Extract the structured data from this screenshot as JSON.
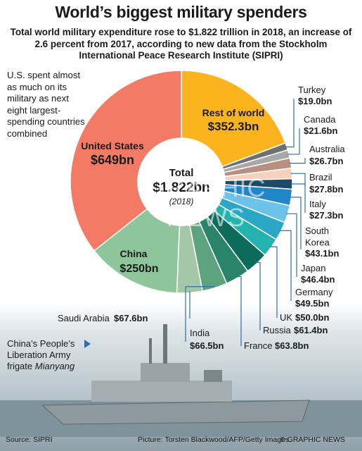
{
  "header": {
    "title": "World’s biggest military spenders",
    "subtitle": "Total world military expenditure rose to $1.822 trillion in 2018, an increase of 2.6 percent from 2017, according to new data from the Stockholm International Peace Research Institute (SIPRI)"
  },
  "note": "U.S. spent almost as much on its military as next eight largest-spending countries combined",
  "center": {
    "label": "Total",
    "value": "$1.822bn",
    "year": "(2018)"
  },
  "chart_data": {
    "type": "pie",
    "title": "World’s biggest military spenders",
    "unit": "$bn",
    "total_label": "$1.822bn",
    "slices": [
      {
        "name": "Rest of world",
        "value": 352.3,
        "label": "$352.3bn",
        "color": "#fbb41d"
      },
      {
        "name": "Turkey",
        "value": 19.0,
        "label": "$19.0bn",
        "color": "#6f6f6f"
      },
      {
        "name": "Canada",
        "value": 21.6,
        "label": "$21.6bn",
        "color": "#a8a8a8"
      },
      {
        "name": "Australia",
        "value": 26.7,
        "label": "$26.7bn",
        "color": "#b98f80"
      },
      {
        "name": "Brazil",
        "value": 27.8,
        "label": "$27.8bn",
        "color": "#f6d2bd"
      },
      {
        "name": "Italy",
        "value": 27.3,
        "label": "$27.3bn",
        "color": "#1b4a69"
      },
      {
        "name": "South Korea",
        "value": 43.1,
        "label": "$43.1bn",
        "color": "#1f86c8"
      },
      {
        "name": "Japan",
        "value": 46.4,
        "label": "$46.4bn",
        "color": "#6dc3e7"
      },
      {
        "name": "Germany",
        "value": 49.5,
        "label": "$49.5bn",
        "color": "#2aa7c4"
      },
      {
        "name": "UK",
        "value": 50.0,
        "label": "$50.0bn",
        "color": "#23b3ae"
      },
      {
        "name": "Russia",
        "value": 61.4,
        "label": "$61.4bn",
        "color": "#0d6b5b"
      },
      {
        "name": "France",
        "value": 63.8,
        "label": "$63.8bn",
        "color": "#2a8467"
      },
      {
        "name": "India",
        "value": 66.5,
        "label": "$66.5bn",
        "color": "#5ea37f"
      },
      {
        "name": "Saudi Arabia",
        "value": 67.6,
        "label": "$67.6bn",
        "color": "#a4c7a8"
      },
      {
        "name": "China",
        "value": 250.0,
        "label": "$250bn",
        "color": "#8ec59a"
      },
      {
        "name": "United States",
        "value": 649.0,
        "label": "$649bn",
        "color": "#f37a64"
      }
    ]
  },
  "photo_caption": {
    "lead": "China’s People’s Liberation Army frigate",
    "ship": "Mianyang"
  },
  "footer": {
    "source": "Source: SIPRI",
    "credit": "Picture: Torsten Blackwood/AFP/Getty Images",
    "copyright": "© GRAPHIC NEWS"
  },
  "watermark": "GRAPHIC NEWS"
}
